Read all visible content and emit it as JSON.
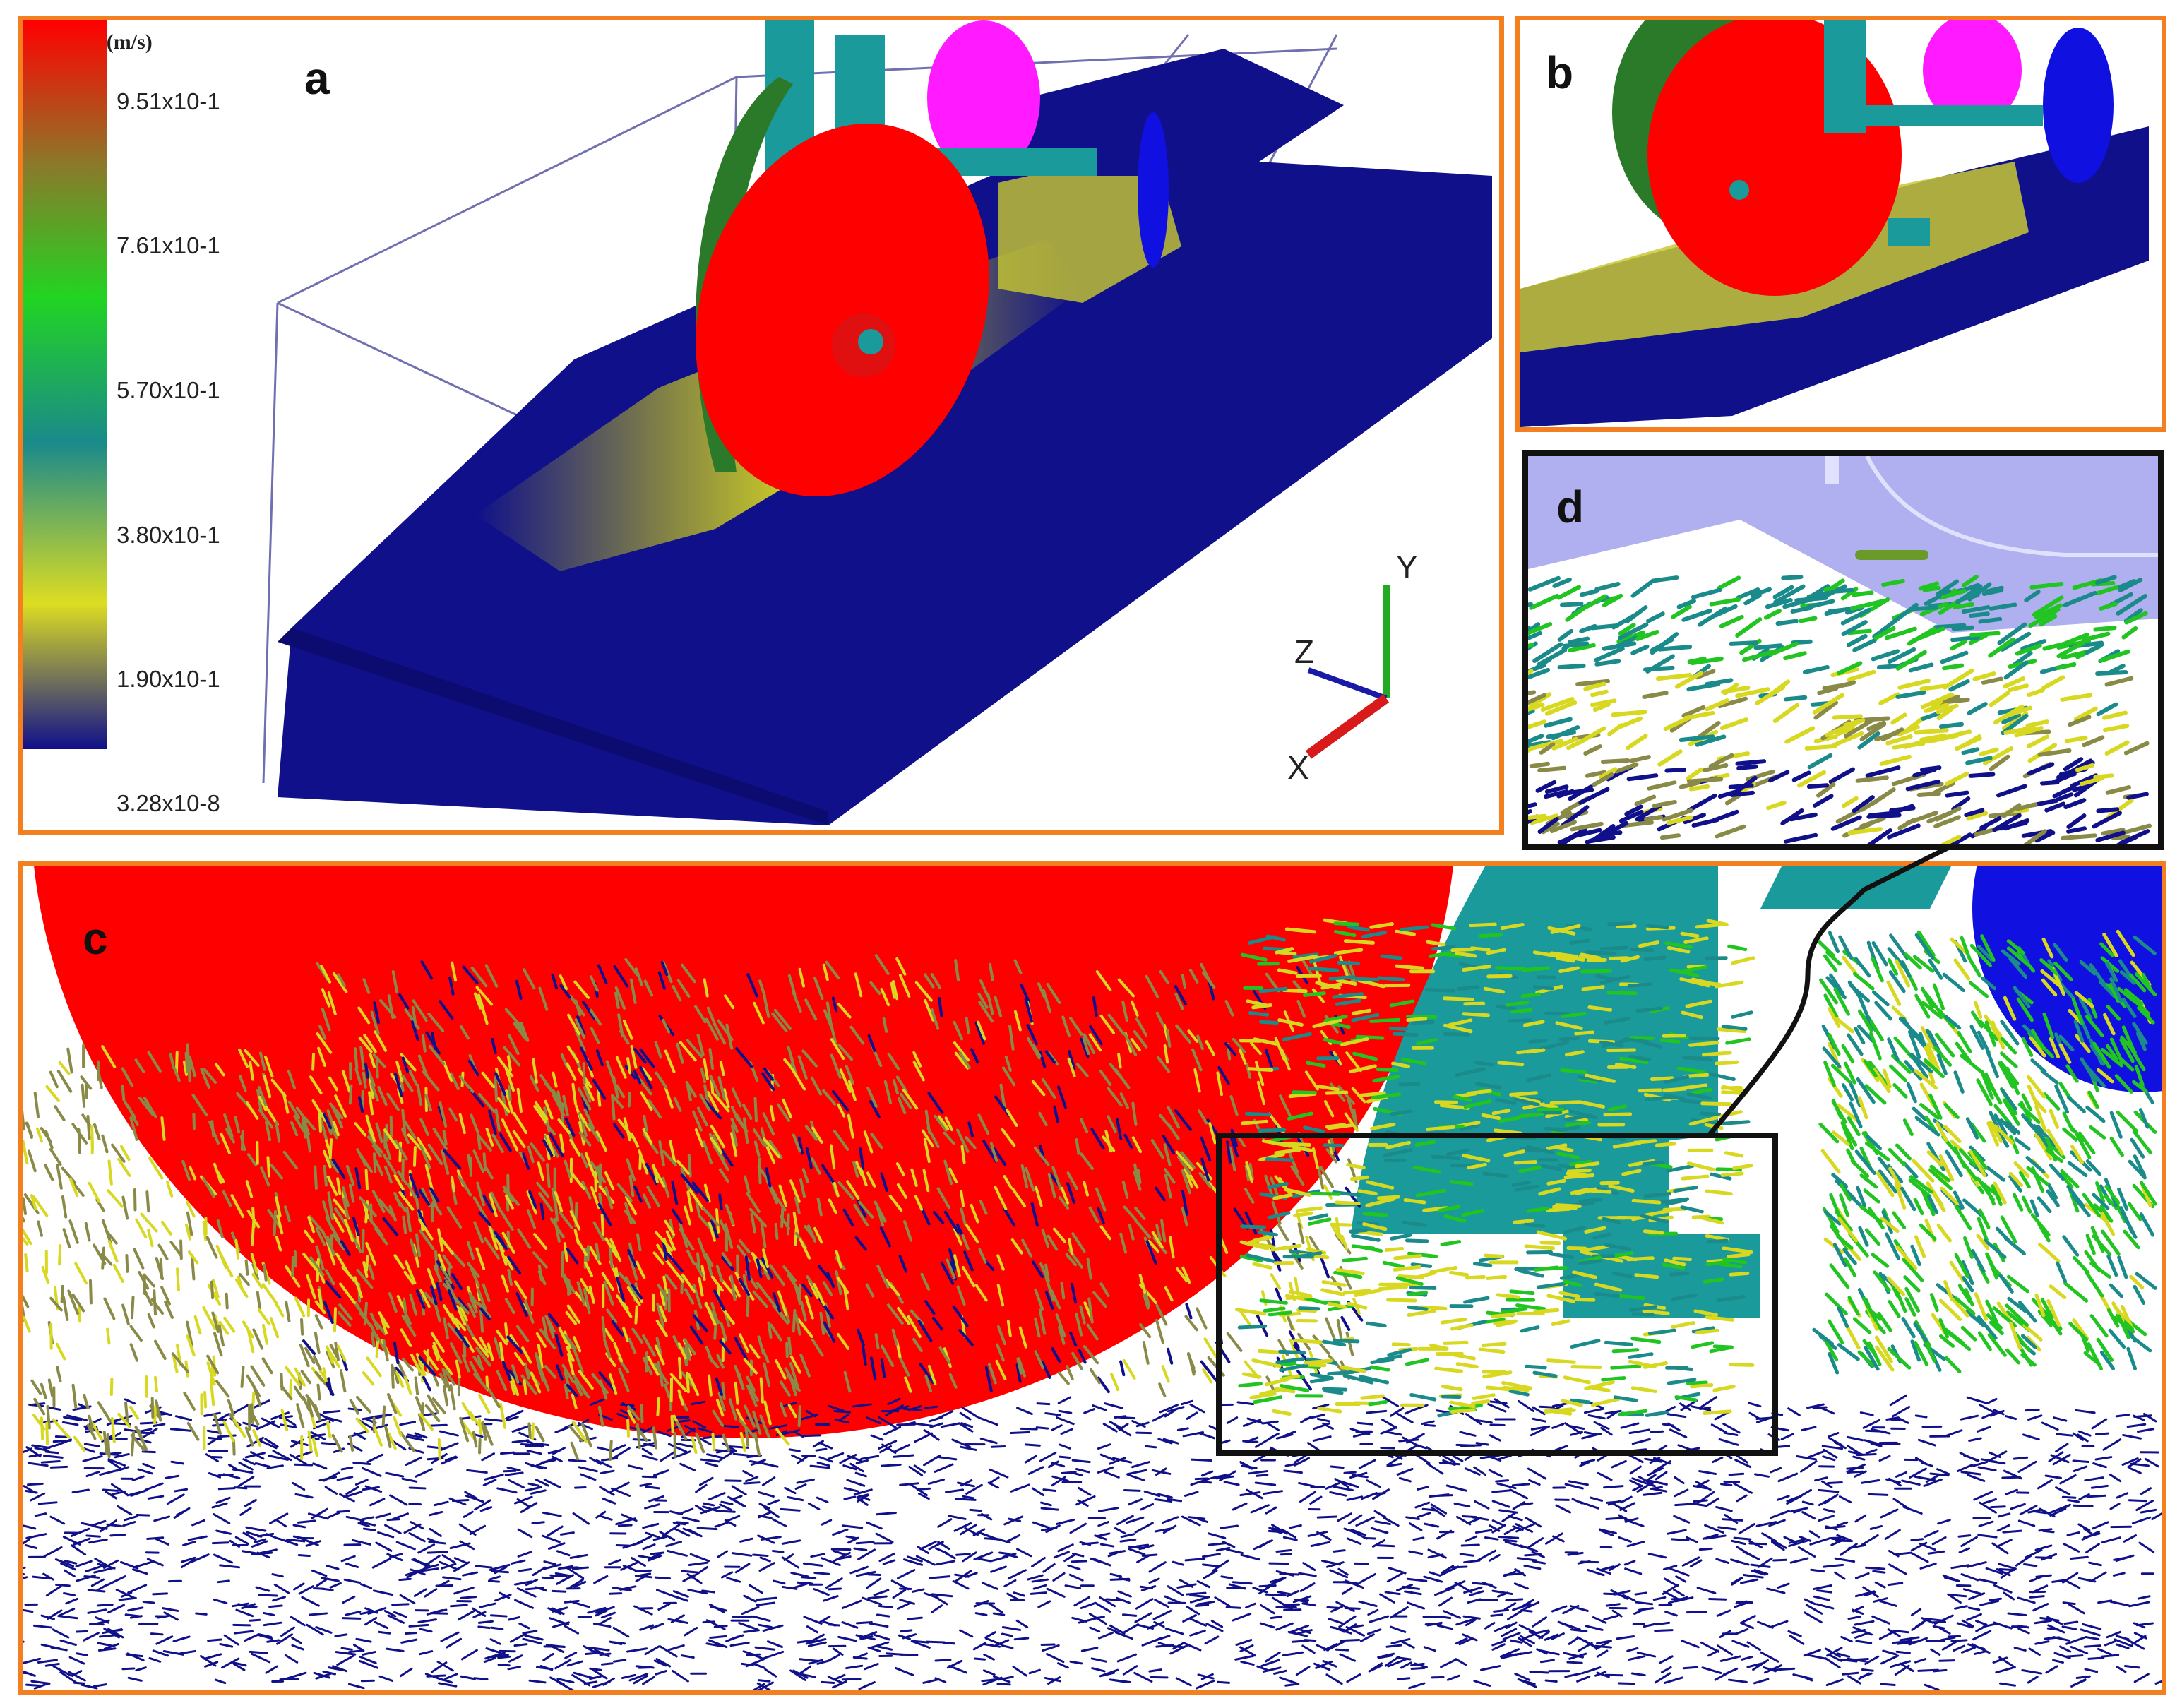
{
  "panels": {
    "a": {
      "letter": "a"
    },
    "b": {
      "letter": "b"
    },
    "c": {
      "letter": "c"
    },
    "d": {
      "letter": "d"
    }
  },
  "legend": {
    "title": "Velocity (m/s)",
    "ticks": [
      "9.51x10-1",
      "7.61x10-1",
      "5.70x10-1",
      "3.80x10-1",
      "1.90x10-1",
      "3.28x10-8"
    ],
    "colors": [
      "#ff0000",
      "#8a7a2a",
      "#22d422",
      "#1a8a8a",
      "#dddd22",
      "#10108a"
    ]
  },
  "axes": {
    "x": "X",
    "y": "Y",
    "z": "Z",
    "colors": {
      "x": "#d81a1a",
      "y": "#22aa22",
      "z": "#1a1aa8"
    }
  },
  "colors": {
    "frame": "#f47f20",
    "disc": "#ff0000",
    "disc_dark": "#2a7a2a",
    "frame_teal": "#1a9a9a",
    "magenta": "#ff1aff",
    "blue_disc": "#1010e0",
    "soil": "#10108a",
    "soil_fast": "#d8d820"
  }
}
